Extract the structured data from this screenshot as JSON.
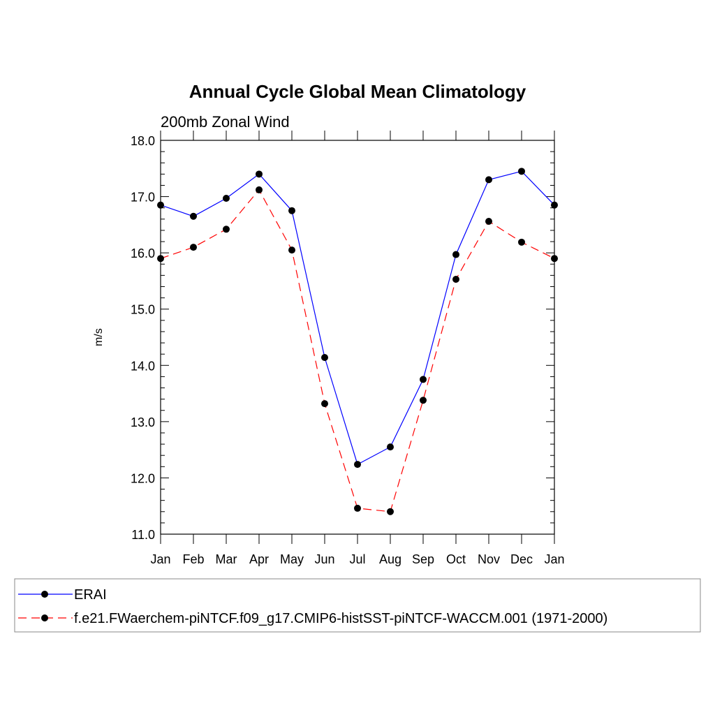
{
  "chart_data": {
    "type": "line",
    "title": "Annual Cycle Global Mean Climatology",
    "subtitle": "200mb Zonal Wind",
    "xlabel": "",
    "ylabel": "m/s",
    "categories": [
      "Jan",
      "Feb",
      "Mar",
      "Apr",
      "May",
      "Jun",
      "Jul",
      "Aug",
      "Sep",
      "Oct",
      "Nov",
      "Dec",
      "Jan"
    ],
    "ylim": [
      11.0,
      18.0
    ],
    "yticks": [
      "11.0",
      "12.0",
      "13.0",
      "14.0",
      "15.0",
      "16.0",
      "17.0",
      "18.0"
    ],
    "grid": false,
    "legend_position": "bottom",
    "series": [
      {
        "name": "ERAI",
        "color": "#0000ff",
        "dash": "solid",
        "marker": "filled-circle",
        "values": [
          16.85,
          16.65,
          16.97,
          17.4,
          16.75,
          14.14,
          12.24,
          12.55,
          13.75,
          15.97,
          17.3,
          17.45,
          16.85
        ]
      },
      {
        "name": "f.e21.FWaerchem-piNTCF.f09_g17.CMIP6-histSST-piNTCF-WACCM.001 (1971-2000)",
        "color": "#ff0000",
        "dash": "dashed",
        "marker": "filled-circle",
        "values": [
          15.9,
          16.1,
          16.42,
          17.12,
          16.05,
          13.32,
          11.46,
          11.4,
          13.38,
          15.53,
          16.56,
          16.19,
          15.9
        ]
      }
    ]
  }
}
